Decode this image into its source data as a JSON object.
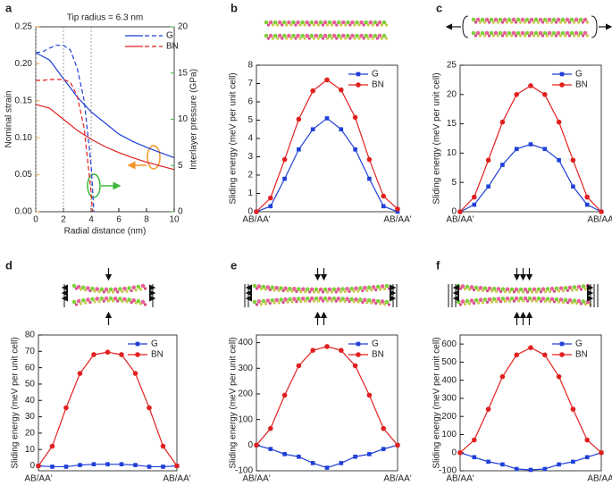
{
  "chart_data": [
    {
      "type": "line",
      "label": "a",
      "title": "Tip radius = 6.3 nm",
      "x_label": "Radial distance (nm)",
      "y_label": "Nominal strain",
      "y2_label": "Interlayer pressure (GPa)",
      "xlim": [
        0,
        10
      ],
      "xticks": [
        0,
        2,
        4,
        6,
        8,
        10
      ],
      "ylim": [
        0,
        0.25
      ],
      "yticks": [
        {
          "value": 0,
          "label": "0.00"
        },
        0.05,
        {
          "value": 0.1,
          "label": "0.10"
        },
        0.15,
        {
          "value": 0.2,
          "label": "0.20"
        },
        0.25
      ],
      "y_color": "#f0962a",
      "y2lim": [
        0,
        20
      ],
      "y2ticks": [
        0,
        5,
        10,
        15,
        20
      ],
      "y2_color": "#3cb93c",
      "vlines": [
        0,
        2,
        4
      ],
      "legend": "upper right",
      "series": [
        {
          "name": "G",
          "color": "#1f3fd8",
          "x": [
            0,
            1,
            2,
            3,
            4,
            5,
            6,
            7,
            8,
            9,
            10
          ],
          "values": [
            0.215,
            0.205,
            0.18,
            0.155,
            0.135,
            0.12,
            0.105,
            0.095,
            0.087,
            0.08,
            0.073
          ]
        },
        {
          "name": "BN",
          "color": "#e0201f",
          "x": [
            0,
            1,
            2,
            3,
            4,
            5,
            6,
            7,
            8,
            9,
            10
          ],
          "values": [
            0.145,
            0.14,
            0.125,
            0.11,
            0.098,
            0.088,
            0.08,
            0.073,
            0.067,
            0.062,
            0.057
          ]
        },
        {
          "name": "G",
          "color": "#1f3fd8",
          "dashed": true,
          "axis": "y2",
          "x": [
            0,
            0.5,
            1,
            1.5,
            2,
            2.5,
            3,
            3.5,
            4,
            4.2
          ],
          "values": [
            17.2,
            17.3,
            17.7,
            18,
            18,
            17.5,
            15.5,
            12,
            5,
            0
          ]
        },
        {
          "name": "BN",
          "color": "#e0201f",
          "dashed": true,
          "axis": "y2",
          "x": [
            0,
            0.5,
            1,
            1.5,
            2,
            2.5,
            3,
            3.5,
            4,
            4.1
          ],
          "values": [
            14.2,
            14.2,
            14.3,
            14.3,
            14.3,
            14,
            12.5,
            9,
            2,
            0
          ]
        }
      ]
    },
    {
      "type": "line",
      "label": "b",
      "y_label": "Sliding energy (meV per unit cell)",
      "legend": "upper right",
      "categories": [
        "AB/AA'",
        null,
        null,
        null,
        null,
        null,
        null,
        null,
        null,
        null,
        "AB/AA'"
      ],
      "ylim": [
        0,
        8
      ],
      "yticks": [
        0,
        1,
        2,
        3,
        4,
        5,
        6,
        7,
        8
      ],
      "series": [
        {
          "name": "G",
          "color": "#1f3fd8",
          "marker": "square",
          "values": [
            0,
            0.3,
            1.8,
            3.4,
            4.5,
            5.1,
            4.5,
            3.4,
            1.8,
            0.3,
            0
          ]
        },
        {
          "name": "BN",
          "color": "#e0201f",
          "marker": "circle",
          "values": [
            0,
            0.75,
            2.85,
            5.05,
            6.6,
            7.2,
            6.65,
            5.15,
            2.85,
            0.85,
            0.15
          ]
        }
      ]
    },
    {
      "type": "line",
      "label": "c",
      "y_label": "Sliding energy (meV per unit cell)",
      "legend": "upper right",
      "categories": [
        "AB/AA'",
        null,
        null,
        null,
        null,
        null,
        null,
        null,
        null,
        null,
        "AB/AA'"
      ],
      "ylim": [
        0,
        25
      ],
      "yticks": [
        0,
        5,
        10,
        15,
        20,
        25
      ],
      "series": [
        {
          "name": "G",
          "color": "#1f3fd8",
          "marker": "square",
          "values": [
            0,
            1.2,
            4.3,
            8,
            10.7,
            11.5,
            10.7,
            8.8,
            4.3,
            1.2,
            0
          ]
        },
        {
          "name": "BN",
          "color": "#e0201f",
          "marker": "circle",
          "values": [
            0,
            2.5,
            8.8,
            15.3,
            20,
            21.5,
            20,
            15.3,
            8.8,
            2.5,
            0
          ]
        }
      ]
    },
    {
      "type": "line",
      "label": "d",
      "y_label": "Sliding energy (meV per unit cell)",
      "legend": "upper right",
      "categories": [
        "AB/AA'",
        null,
        null,
        null,
        null,
        null,
        null,
        null,
        null,
        null,
        "AB/AA'"
      ],
      "ylim": [
        -3,
        80
      ],
      "yticks": [
        0,
        10,
        20,
        30,
        40,
        50,
        60,
        70,
        80
      ],
      "series": [
        {
          "name": "G",
          "color": "#1f3fd8",
          "marker": "square",
          "values": [
            0,
            -0.5,
            -0.5,
            0.5,
            1,
            1,
            1,
            0.5,
            -0.5,
            -0.5,
            0
          ]
        },
        {
          "name": "BN",
          "color": "#e0201f",
          "marker": "circle",
          "values": [
            0,
            12,
            35.5,
            56.5,
            68,
            69.5,
            68,
            56.5,
            35.5,
            12,
            0
          ]
        }
      ]
    },
    {
      "type": "line",
      "label": "e",
      "y_label": "Sliding energy (meV per unit cell)",
      "legend": "upper right",
      "categories": [
        "AB/AA'",
        null,
        null,
        null,
        null,
        null,
        null,
        null,
        null,
        null,
        "AB/AA'"
      ],
      "ylim": [
        -100,
        430
      ],
      "yticks": [
        -100,
        0,
        100,
        200,
        300,
        400
      ],
      "series": [
        {
          "name": "G",
          "color": "#1f3fd8",
          "marker": "square",
          "values": [
            0,
            -15,
            -35,
            -45,
            -70,
            -88,
            -70,
            -45,
            -35,
            -15,
            0
          ]
        },
        {
          "name": "BN",
          "color": "#e0201f",
          "marker": "circle",
          "values": [
            0,
            65,
            195,
            310,
            370,
            385,
            370,
            310,
            195,
            65,
            0
          ]
        }
      ]
    },
    {
      "type": "line",
      "label": "f",
      "y_label": "Sliding energy (meV per unit cell)",
      "legend": "upper right",
      "categories": [
        "AB/AA'",
        null,
        null,
        null,
        null,
        null,
        null,
        null,
        null,
        null,
        "AB/AA'"
      ],
      "ylim": [
        -100,
        650
      ],
      "yticks": [
        -100,
        0,
        100,
        200,
        300,
        400,
        500,
        600
      ],
      "series": [
        {
          "name": "G",
          "color": "#1f3fd8",
          "marker": "square",
          "values": [
            0,
            -25,
            -50,
            -65,
            -90,
            -95,
            -90,
            -65,
            -50,
            -25,
            0
          ]
        },
        {
          "name": "BN",
          "color": "#e0201f",
          "marker": "circle",
          "values": [
            0,
            70,
            240,
            420,
            540,
            580,
            540,
            420,
            240,
            70,
            0
          ]
        }
      ]
    }
  ]
}
